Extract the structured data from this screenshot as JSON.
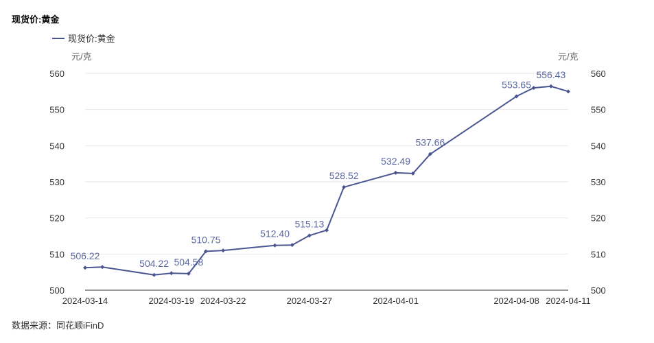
{
  "title": "现货价:黄金",
  "legend_label": "现货价:黄金",
  "unit_left": "元/克",
  "unit_right": "元/克",
  "source": "数据来源：同花顺iFinD",
  "colors": {
    "series": "#4a5590",
    "label": "#5a67a0",
    "grid": "#e6e6e6",
    "axis": "#333333"
  },
  "chart_data": {
    "type": "line",
    "title": "现货价:黄金",
    "ylabel": "元/克",
    "ylim": [
      500,
      560
    ],
    "yticks": [
      500,
      510,
      520,
      530,
      540,
      550,
      560
    ],
    "grid": true,
    "legend": "top-left",
    "x": [
      "2024-03-14",
      "2024-03-15",
      "2024-03-18",
      "2024-03-19",
      "2024-03-20",
      "2024-03-21",
      "2024-03-22",
      "2024-03-25",
      "2024-03-26",
      "2024-03-27",
      "2024-03-28",
      "2024-03-29",
      "2024-04-01",
      "2024-04-02",
      "2024-04-03",
      "2024-04-08",
      "2024-04-09",
      "2024-04-10",
      "2024-04-11"
    ],
    "xtick_labels": [
      "2024-03-14",
      "2024-03-19",
      "2024-03-22",
      "2024-03-27",
      "2024-04-01",
      "2024-04-08",
      "2024-04-11"
    ],
    "series": [
      {
        "name": "现货价:黄金",
        "values": [
          506.22,
          506.4,
          504.22,
          504.7,
          504.58,
          510.75,
          511.0,
          512.4,
          512.5,
          515.13,
          516.6,
          528.52,
          532.49,
          532.3,
          537.66,
          553.65,
          556.0,
          556.43,
          555.0
        ]
      }
    ],
    "data_labels": [
      {
        "index": 0,
        "text": "506.22"
      },
      {
        "index": 2,
        "text": "504.22"
      },
      {
        "index": 4,
        "text": "504.58"
      },
      {
        "index": 5,
        "text": "510.75"
      },
      {
        "index": 7,
        "text": "512.40"
      },
      {
        "index": 9,
        "text": "515.13"
      },
      {
        "index": 11,
        "text": "528.52"
      },
      {
        "index": 12,
        "text": "532.49"
      },
      {
        "index": 14,
        "text": "537.66"
      },
      {
        "index": 15,
        "text": "553.65"
      },
      {
        "index": 17,
        "text": "556.43"
      }
    ]
  }
}
